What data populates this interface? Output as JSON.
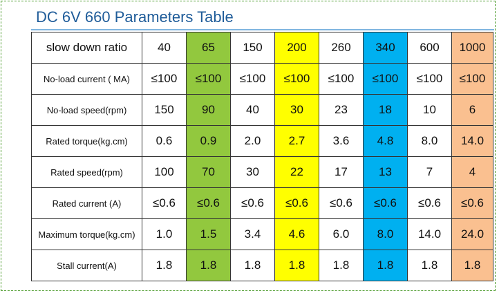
{
  "header": {
    "title": "DC 6V 660 Parameters Table"
  },
  "table": {
    "rows": [
      [
        "slow down ratio",
        "40",
        "65",
        "150",
        "200",
        "260",
        "340",
        "600",
        "1000"
      ],
      [
        "No-load current ( MA)",
        "≤100",
        "≤100",
        "≤100",
        "≤100",
        "≤100",
        "≤100",
        "≤100",
        "≤100"
      ],
      [
        "No-load speed(rpm)",
        "150",
        "90",
        "40",
        "30",
        "23",
        "18",
        "10",
        "6"
      ],
      [
        "Rated torque(kg.cm)",
        "0.6",
        "0.9",
        "2.0",
        "2.7",
        "3.6",
        "4.8",
        "8.0",
        "14.0"
      ],
      [
        "Rated speed(rpm)",
        "100",
        "70",
        "30",
        "22",
        "17",
        "13",
        "7",
        "4"
      ],
      [
        "Rated current (A)",
        "≤0.6",
        "≤0.6",
        "≤0.6",
        "≤0.6",
        "≤0.6",
        "≤0.6",
        "≤0.6",
        "≤0.6"
      ],
      [
        "Maximum torque(kg.cm)",
        "1.0",
        "1.5",
        "3.4",
        "4.6",
        "6.0",
        "8.0",
        "14.0",
        "24.0"
      ],
      [
        "Stall current(A)",
        "1.8",
        "1.8",
        "1.8",
        "1.8",
        "1.8",
        "1.8",
        "1.8",
        "1.8"
      ]
    ]
  }
}
